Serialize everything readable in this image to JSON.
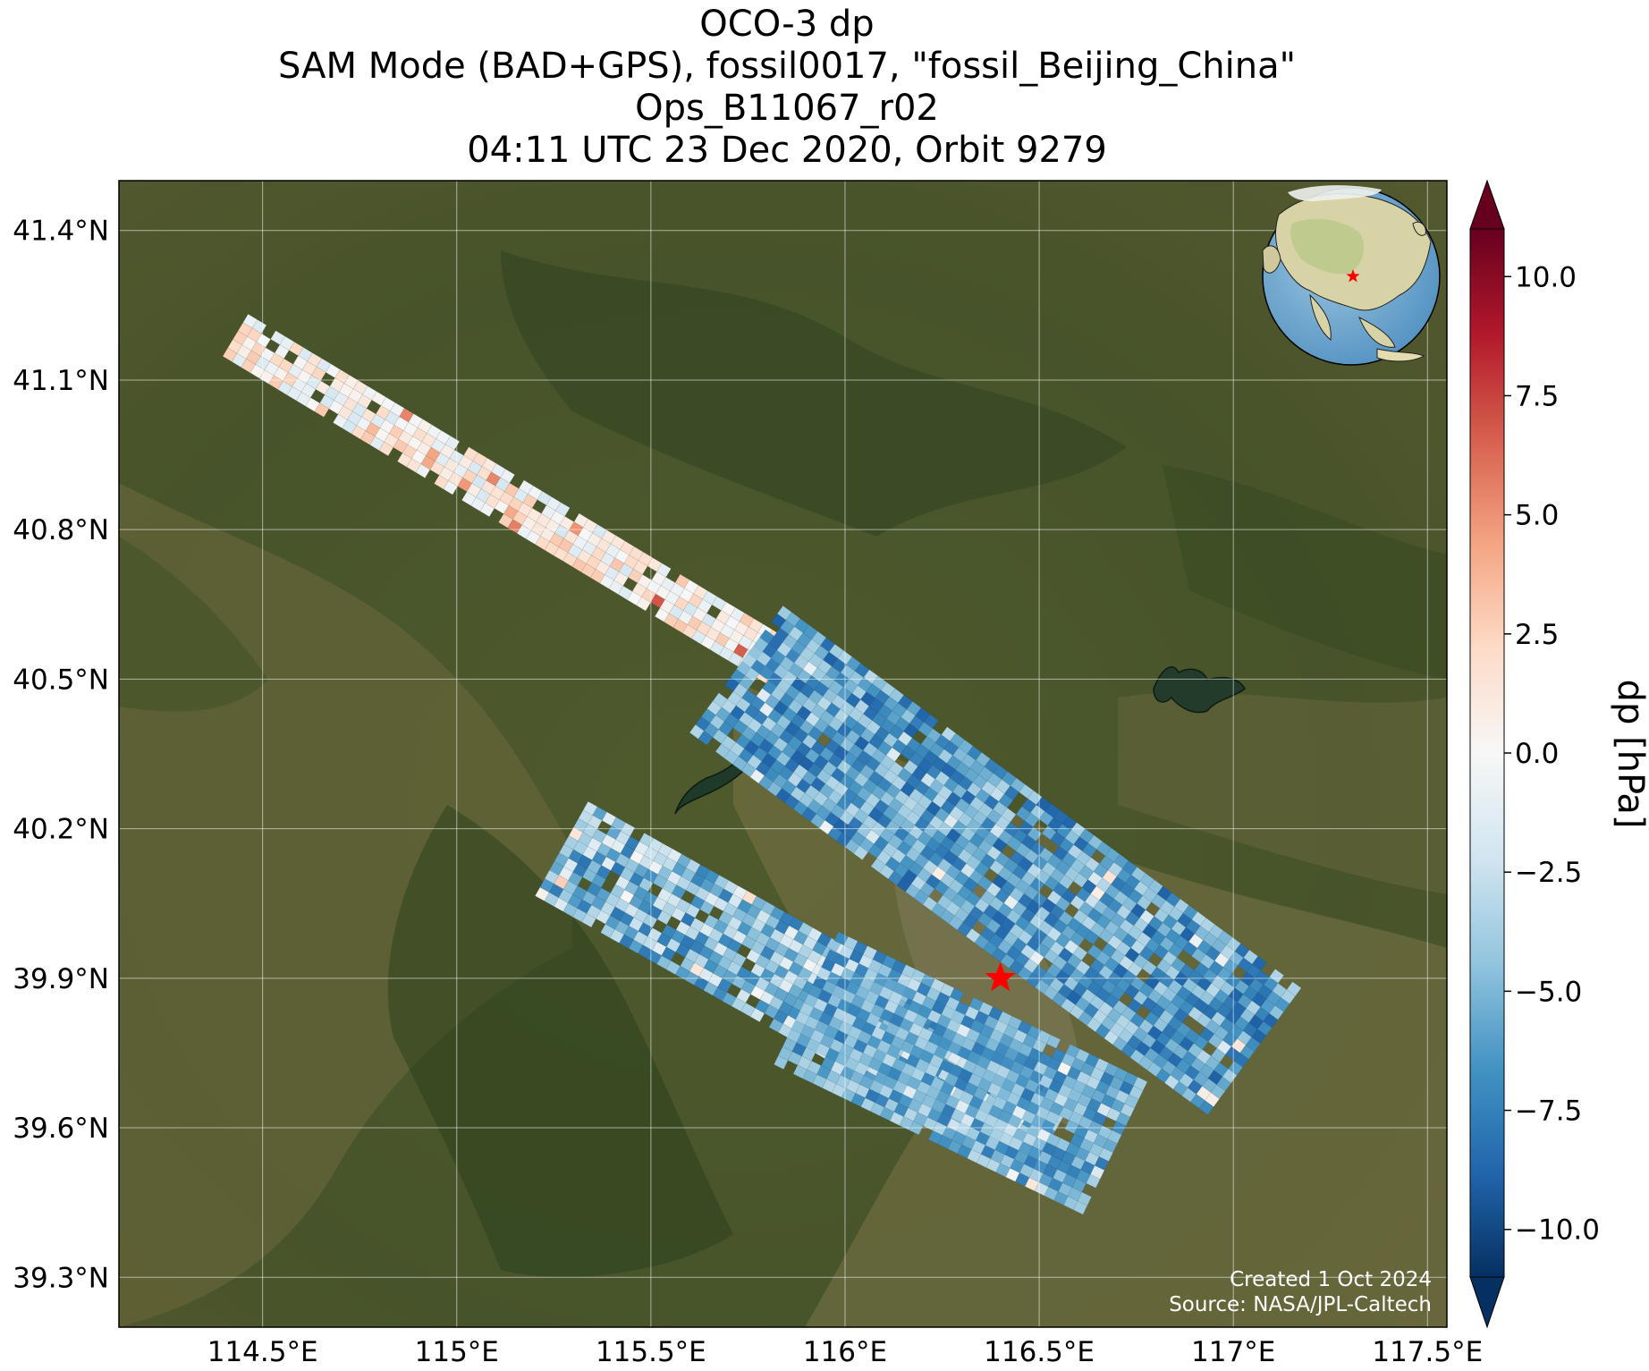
{
  "title": {
    "line1": "OCO-3 dp",
    "line2": "SAM Mode (BAD+GPS), fossil0017, \"fossil_Beijing_China\"",
    "line3": "Ops_B11067_r02",
    "line4": "04:11 UTC 23 Dec 2020, Orbit 9279"
  },
  "axes": {
    "lat_ticks": [
      {
        "value": 41.4,
        "label": "41.4°N"
      },
      {
        "value": 41.1,
        "label": "41.1°N"
      },
      {
        "value": 40.8,
        "label": "40.8°N"
      },
      {
        "value": 40.5,
        "label": "40.5°N"
      },
      {
        "value": 40.2,
        "label": "40.2°N"
      },
      {
        "value": 39.9,
        "label": "39.9°N"
      },
      {
        "value": 39.6,
        "label": "39.6°N"
      },
      {
        "value": 39.3,
        "label": "39.3°N"
      }
    ],
    "lon_ticks": [
      {
        "value": 114.5,
        "label": "114.5°E"
      },
      {
        "value": 115.0,
        "label": "115°E"
      },
      {
        "value": 115.5,
        "label": "115.5°E"
      },
      {
        "value": 116.0,
        "label": "116°E"
      },
      {
        "value": 116.5,
        "label": "116.5°E"
      },
      {
        "value": 117.0,
        "label": "117°E"
      },
      {
        "value": 117.5,
        "label": "117.5°E"
      }
    ],
    "lon_range": [
      114.13,
      117.55
    ],
    "lat_range": [
      39.2,
      41.5
    ],
    "grid": true
  },
  "colorbar": {
    "label": "dp [hPa]",
    "colormap": "RdBu_r",
    "range": [
      -11,
      11
    ],
    "extend": "both",
    "ticks": [
      {
        "value": 10,
        "label": "10.0"
      },
      {
        "value": 7.5,
        "label": "7.5"
      },
      {
        "value": 5,
        "label": "5.0"
      },
      {
        "value": 2.5,
        "label": "2.5"
      },
      {
        "value": 0,
        "label": "0.0"
      },
      {
        "value": -2.5,
        "label": "−2.5"
      },
      {
        "value": -5,
        "label": "−5.0"
      },
      {
        "value": -7.5,
        "label": "−7.5"
      },
      {
        "value": -10,
        "label": "−10.0"
      }
    ]
  },
  "target": {
    "name": "fossil_Beijing_China",
    "lon": 116.4,
    "lat": 39.9,
    "marker_color": "#ff0000"
  },
  "credits": {
    "created": "Created 1 Oct 2024",
    "source": "Source: NASA/JPL-Caltech"
  },
  "inset_globe": {
    "center_marker": "star",
    "marker_color": "#ff0000"
  },
  "swaths": [
    {
      "id": "swath-1",
      "from": [
        114.43,
        41.19
      ],
      "to": [
        115.88,
        40.51
      ],
      "width_deg": 0.1,
      "dp_hint": [
        -2,
        3
      ]
    },
    {
      "id": "swath-2",
      "from": [
        115.72,
        40.52
      ],
      "to": [
        117.06,
        39.75
      ],
      "width_deg": 0.32,
      "dp_hint": [
        -9,
        -3
      ]
    },
    {
      "id": "swath-3",
      "from": [
        115.27,
        40.16
      ],
      "to": [
        116.55,
        39.6
      ],
      "width_deg": 0.23,
      "dp_hint": [
        -8,
        -1
      ]
    },
    {
      "id": "swath-4",
      "from": [
        115.9,
        39.86
      ],
      "to": [
        116.72,
        39.55
      ],
      "width_deg": 0.3,
      "dp_hint": [
        -8,
        -3
      ]
    }
  ],
  "features": {
    "map_background": "satellite-imagery",
    "reservoir": {
      "lon": 116.93,
      "lat": 40.5
    }
  }
}
